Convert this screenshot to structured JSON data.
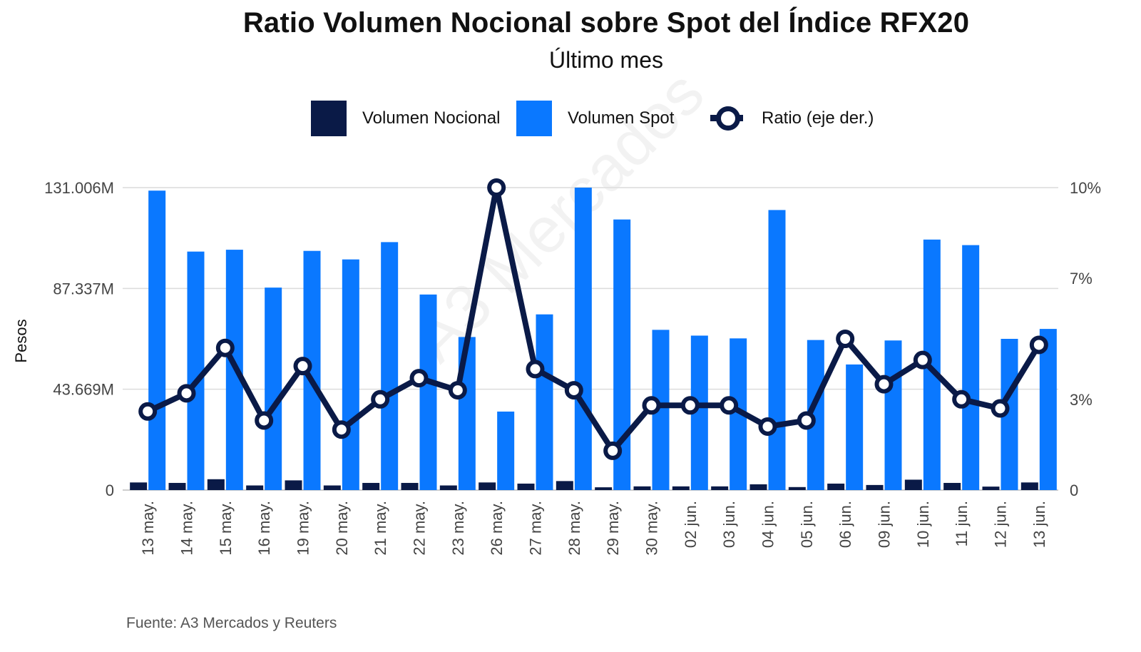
{
  "chart_data": {
    "type": "bar",
    "title": "Ratio Volumen Nocional sobre Spot del Índice RFX20",
    "subtitle": "Último mes",
    "ylabel": "Pesos",
    "source": "Fuente: A3 Mercados y Reuters",
    "watermark": "A3 Mercados",
    "legend_position": "top-center",
    "grid": true,
    "categories": [
      "13 may.",
      "14 may.",
      "15 may.",
      "16 may.",
      "19 may.",
      "20 may.",
      "21 may.",
      "22 may.",
      "23 may.",
      "26 may.",
      "27 may.",
      "28 may.",
      "29 may.",
      "30 may.",
      "02 jun.",
      "03 jun.",
      "04 jun.",
      "05 jun.",
      "06 jun.",
      "09 jun.",
      "10 jun.",
      "11 jun.",
      "12 jun.",
      "13 jun."
    ],
    "left_axis": {
      "ylim": [
        0,
        131006
      ],
      "unit": "M",
      "ticks": [
        0,
        43669,
        87337,
        131006
      ],
      "tick_labels": [
        "0",
        "43.669M",
        "87.337M",
        "131.006M"
      ]
    },
    "right_axis": {
      "ylim": [
        0,
        10
      ],
      "ticks": [
        0,
        3,
        7,
        10
      ],
      "tick_labels": [
        "0",
        "3%",
        "7%",
        "10%"
      ]
    },
    "series": [
      {
        "name": "Volumen Nocional",
        "type": "bar",
        "axis": "left",
        "color": "#0a1a47",
        "values": [
          3300,
          3100,
          4700,
          2000,
          4200,
          2000,
          3100,
          3100,
          2000,
          3300,
          2800,
          3900,
          1200,
          1600,
          1600,
          1600,
          2500,
          1300,
          2800,
          2200,
          4500,
          3100,
          1500,
          3300
        ]
      },
      {
        "name": "Volumen Spot",
        "type": "bar",
        "axis": "left",
        "color": "#0a78ff",
        "values": [
          129700,
          103300,
          104100,
          87700,
          103600,
          99900,
          107400,
          84700,
          66300,
          34000,
          76100,
          131006,
          117200,
          69400,
          66900,
          65700,
          121300,
          65000,
          54400,
          64800,
          108500,
          106100,
          65500,
          69800
        ]
      },
      {
        "name": "Ratio (eje der.)",
        "type": "line",
        "axis": "right",
        "color": "#0a1a47",
        "values": [
          2.6,
          3.2,
          4.7,
          2.3,
          4.1,
          2.0,
          3.0,
          3.7,
          3.3,
          10.0,
          4.0,
          3.3,
          1.3,
          2.8,
          2.8,
          2.8,
          2.1,
          2.3,
          5.0,
          3.5,
          4.3,
          3.0,
          2.7,
          4.8
        ]
      }
    ]
  }
}
